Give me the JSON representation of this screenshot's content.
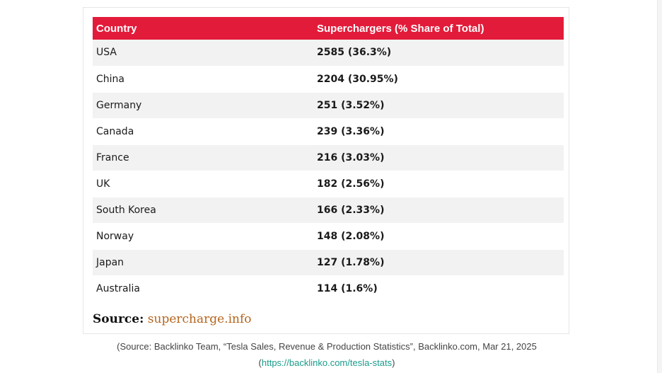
{
  "table": {
    "headers": [
      "Country",
      "Superchargers (% Share of Total)"
    ],
    "rows": [
      {
        "country": "USA",
        "value": "2585 (36.3%)"
      },
      {
        "country": "China",
        "value": "2204 (30.95%)"
      },
      {
        "country": "Germany",
        "value": "251 (3.52%)"
      },
      {
        "country": "Canada",
        "value": "239 (3.36%)"
      },
      {
        "country": "France",
        "value": "216 (3.03%)"
      },
      {
        "country": "UK",
        "value": "182 (2.56%)"
      },
      {
        "country": "South Korea",
        "value": "166 (2.33%)"
      },
      {
        "country": "Norway",
        "value": "148 (2.08%)"
      },
      {
        "country": "Japan",
        "value": "127 (1.78%)"
      },
      {
        "country": "Australia",
        "value": "114 (1.6%)"
      }
    ],
    "header_color": "#e31b3a"
  },
  "source": {
    "label": "Source:",
    "link_text": "supercharge.info",
    "link_color": "#b5651d"
  },
  "caption": {
    "line1": "(Source: Backlinko Team, “Tesla Sales, Revenue & Production Statistics”, Backlinko.com, Mar 21, 2025",
    "open_paren": "(",
    "url": "https://backlinko.com/tesla-stats",
    "close_paren": ")",
    "link_color": "#1a9c8c"
  }
}
